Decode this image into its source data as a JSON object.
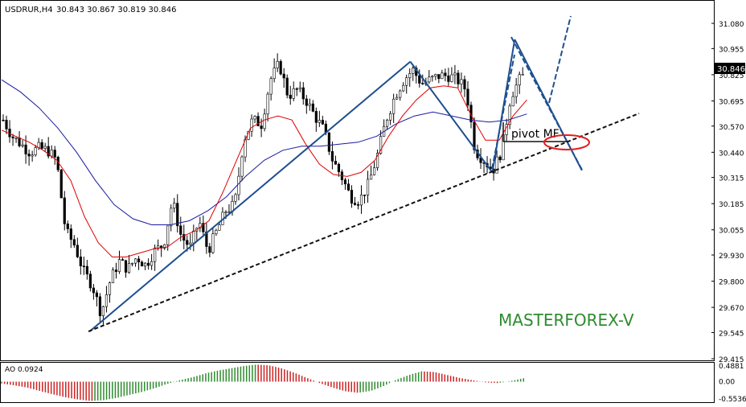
{
  "header": {
    "symbol": "USDRUR,H4",
    "ohlc": "30.843 30.867 30.819 30.846"
  },
  "watermark": "MASTERFOREX-V",
  "annotation": {
    "label": "pivot MF"
  },
  "colors": {
    "ma_fast": "#e00000",
    "ma_slow": "#1a1aa0",
    "pattern": "#1e4f8f",
    "ao_up": "#2e8b2e",
    "ao_down": "#cc2222",
    "highlight": "#e02020"
  },
  "chart_data": [
    {
      "type": "candlestick",
      "y_ticks": [
        "31.080",
        "30.955",
        "30.825",
        "30.695",
        "30.570",
        "30.440",
        "30.315",
        "30.185",
        "30.055",
        "29.930",
        "29.800",
        "29.670",
        "29.545",
        "29.415"
      ],
      "y_range": [
        29.415,
        31.18
      ],
      "current_price": "30.846",
      "close_path": [
        30.6,
        30.52,
        30.48,
        30.44,
        30.46,
        30.45,
        30.4,
        30.05,
        29.98,
        29.85,
        29.78,
        29.64,
        29.8,
        29.9,
        29.86,
        29.92,
        29.88,
        29.95,
        29.98,
        30.2,
        30.02,
        29.97,
        30.1,
        29.95,
        30.05,
        30.15,
        30.18,
        30.5,
        30.6,
        30.58,
        30.8,
        30.88,
        30.72,
        30.75,
        30.7,
        30.62,
        30.55,
        30.4,
        30.32,
        30.22,
        30.2,
        30.28,
        30.42,
        30.6,
        30.72,
        30.8,
        30.85,
        30.78,
        30.8,
        30.82,
        30.82,
        30.8,
        30.75,
        30.45,
        30.4,
        30.35,
        30.45,
        30.72,
        30.8,
        30.85
      ],
      "ma_fast": [
        30.55,
        30.52,
        30.49,
        30.45,
        30.4,
        30.3,
        30.12,
        29.99,
        29.92,
        29.92,
        29.94,
        29.96,
        29.97,
        30.02,
        30.05,
        30.1,
        30.24,
        30.4,
        30.56,
        30.6,
        30.62,
        30.6,
        30.48,
        30.38,
        30.33,
        30.32,
        30.34,
        30.4,
        30.52,
        30.62,
        30.7,
        30.76,
        30.77,
        30.76,
        30.62,
        30.5,
        30.5,
        30.62,
        30.7
      ],
      "ma_slow": [
        30.8,
        30.74,
        30.66,
        30.56,
        30.44,
        30.3,
        30.18,
        30.11,
        30.08,
        30.08,
        30.1,
        30.15,
        30.22,
        30.32,
        30.4,
        30.45,
        30.47,
        30.47,
        30.48,
        30.49,
        30.52,
        30.58,
        30.62,
        30.64,
        30.62,
        30.6,
        30.59,
        30.6,
        30.63
      ],
      "lines": [
        {
          "name": "",
          "points": [
            [
              0.12,
              29.55
            ],
            [
              0.55,
              30.89
            ]
          ]
        },
        {
          "name": "",
          "points": [
            [
              0.55,
              30.89
            ],
            [
              0.66,
              30.34
            ]
          ]
        },
        {
          "name": "",
          "points": [
            [
              0.66,
              30.34
            ],
            [
              0.69,
              31.0
            ]
          ]
        },
        {
          "name": "",
          "points": [
            [
              0.69,
              31.0
            ],
            [
              0.78,
              30.35
            ]
          ]
        }
      ]
    },
    {
      "type": "bar",
      "title": "AO 0.0924",
      "y_ticks": [
        "0.4881",
        "0.00",
        "-0.5536"
      ],
      "y_range": [
        -0.5536,
        0.4881
      ],
      "values": [
        -0.05,
        -0.1,
        -0.16,
        -0.25,
        -0.34,
        -0.42,
        -0.48,
        -0.52,
        -0.5,
        -0.44,
        -0.36,
        -0.28,
        -0.18,
        -0.06,
        0.04,
        0.12,
        0.22,
        0.3,
        0.36,
        0.42,
        0.46,
        0.44,
        0.36,
        0.24,
        0.1,
        -0.04,
        -0.16,
        -0.26,
        -0.3,
        -0.25,
        -0.12,
        0.05,
        0.18,
        0.28,
        0.26,
        0.18,
        0.1,
        0.04,
        -0.02,
        -0.04,
        0.02,
        0.09
      ]
    }
  ]
}
